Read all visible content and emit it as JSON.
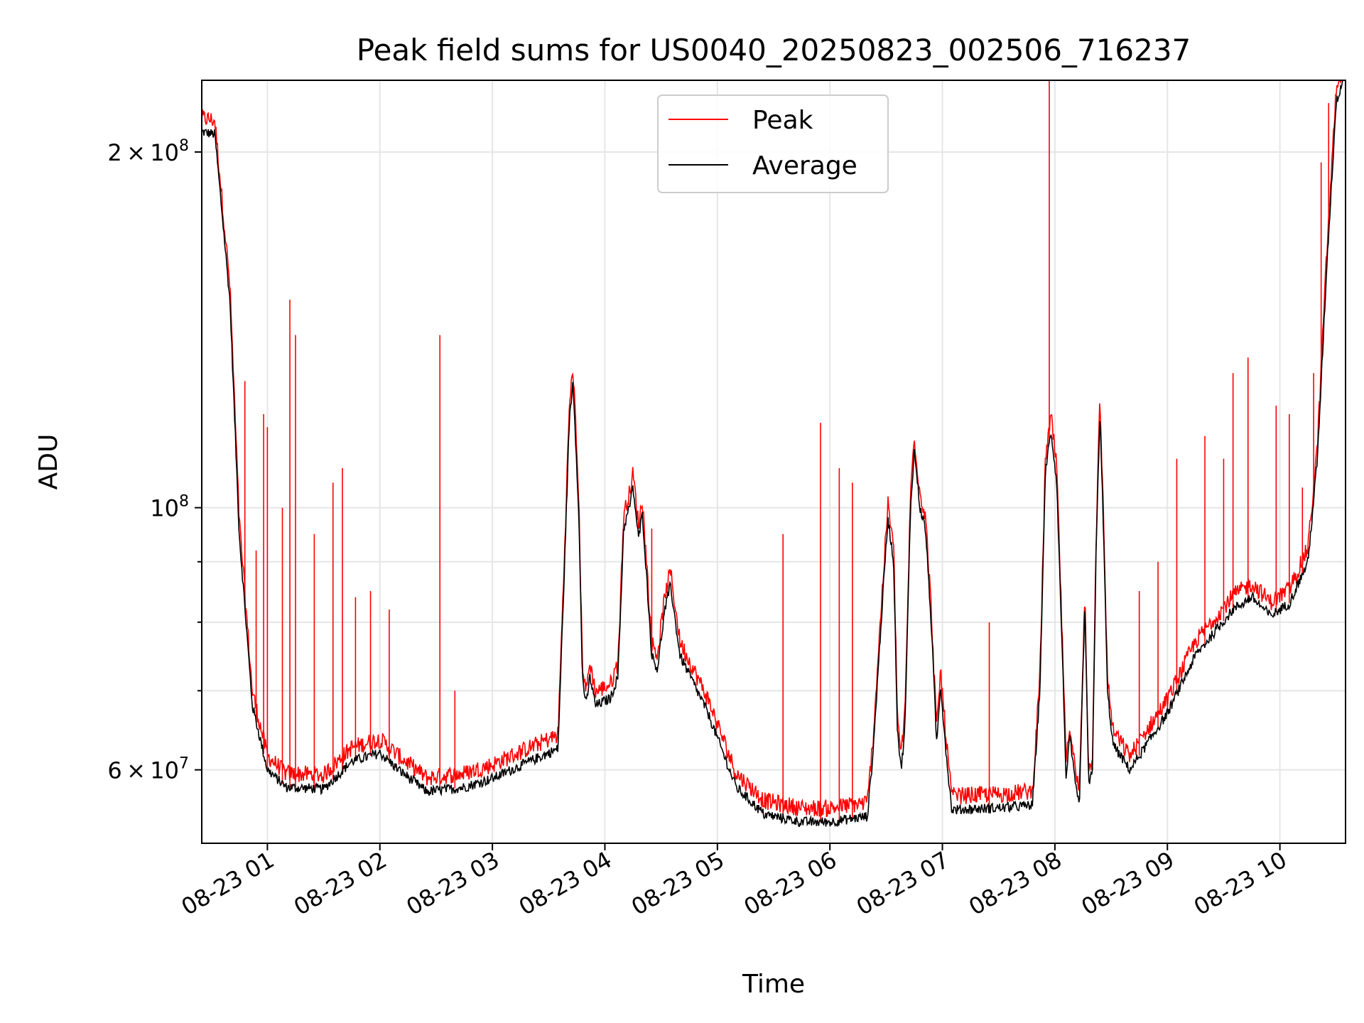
{
  "chart_data": {
    "type": "line",
    "title": "Peak field sums for US0040_20250823_002506_716237",
    "xlabel": "Time",
    "ylabel": "ADU",
    "yscale": "log",
    "ylim": [
      52000000,
      230000000
    ],
    "xlim": [
      "2025-08-23 00:25",
      "2025-08-23 10:35"
    ],
    "grid": true,
    "legend": {
      "position": "top-center",
      "entries": [
        "Peak",
        "Average"
      ]
    },
    "x_ticks": [
      "08-23 01",
      "08-23 02",
      "08-23 03",
      "08-23 04",
      "08-23 05",
      "08-23 06",
      "08-23 07",
      "08-23 08",
      "08-23 09",
      "08-23 10"
    ],
    "y_ticks": [
      {
        "value": 60000000,
        "base": "6 × 10",
        "exp": "7"
      },
      {
        "value": 100000000,
        "base": "10",
        "exp": "8"
      },
      {
        "value": 200000000,
        "base": "2 × 10",
        "exp": "8"
      }
    ],
    "y_minor_ticks": [
      70000000,
      80000000,
      90000000
    ],
    "series": [
      {
        "name": "Average",
        "color": "#000000",
        "points": [
          [
            "2025-08-23 00:25",
            208000000
          ],
          [
            "2025-08-23 00:32",
            207000000
          ],
          [
            "2025-08-23 00:40",
            150000000
          ],
          [
            "2025-08-23 00:45",
            95000000
          ],
          [
            "2025-08-23 00:52",
            68000000
          ],
          [
            "2025-08-23 01:00",
            60000000
          ],
          [
            "2025-08-23 01:10",
            58000000
          ],
          [
            "2025-08-23 01:30",
            57800000
          ],
          [
            "2025-08-23 01:45",
            61000000
          ],
          [
            "2025-08-23 02:00",
            62000000
          ],
          [
            "2025-08-23 02:10",
            60000000
          ],
          [
            "2025-08-23 02:25",
            57500000
          ],
          [
            "2025-08-23 02:45",
            58000000
          ],
          [
            "2025-08-23 03:00",
            59000000
          ],
          [
            "2025-08-23 03:20",
            61000000
          ],
          [
            "2025-08-23 03:35",
            62500000
          ],
          [
            "2025-08-23 03:38",
            85000000
          ],
          [
            "2025-08-23 03:41",
            118000000
          ],
          [
            "2025-08-23 03:43",
            128000000
          ],
          [
            "2025-08-23 03:46",
            100000000
          ],
          [
            "2025-08-23 03:48",
            72000000
          ],
          [
            "2025-08-23 03:50",
            68000000
          ],
          [
            "2025-08-23 03:52",
            72000000
          ],
          [
            "2025-08-23 03:55",
            68000000
          ],
          [
            "2025-08-23 04:03",
            69000000
          ],
          [
            "2025-08-23 04:07",
            72000000
          ],
          [
            "2025-08-23 04:10",
            96000000
          ],
          [
            "2025-08-23 04:13",
            100000000
          ],
          [
            "2025-08-23 04:15",
            104000000
          ],
          [
            "2025-08-23 04:18",
            94000000
          ],
          [
            "2025-08-23 04:20",
            99000000
          ],
          [
            "2025-08-23 04:25",
            75000000
          ],
          [
            "2025-08-23 04:28",
            73000000
          ],
          [
            "2025-08-23 04:32",
            82000000
          ],
          [
            "2025-08-23 04:35",
            86000000
          ],
          [
            "2025-08-23 04:40",
            75000000
          ],
          [
            "2025-08-23 04:55",
            67000000
          ],
          [
            "2025-08-23 05:10",
            58000000
          ],
          [
            "2025-08-23 05:25",
            55000000
          ],
          [
            "2025-08-23 05:45",
            54200000
          ],
          [
            "2025-08-23 06:00",
            54200000
          ],
          [
            "2025-08-23 06:20",
            54800000
          ],
          [
            "2025-08-23 06:23",
            62000000
          ],
          [
            "2025-08-23 06:26",
            74000000
          ],
          [
            "2025-08-23 06:29",
            88000000
          ],
          [
            "2025-08-23 06:31",
            98000000
          ],
          [
            "2025-08-23 06:34",
            90000000
          ],
          [
            "2025-08-23 06:36",
            65000000
          ],
          [
            "2025-08-23 06:38",
            60000000
          ],
          [
            "2025-08-23 06:40",
            65000000
          ],
          [
            "2025-08-23 06:43",
            100000000
          ],
          [
            "2025-08-23 06:45",
            112000000
          ],
          [
            "2025-08-23 06:48",
            100000000
          ],
          [
            "2025-08-23 06:51",
            96000000
          ],
          [
            "2025-08-23 06:54",
            80000000
          ],
          [
            "2025-08-23 06:57",
            63000000
          ],
          [
            "2025-08-23 06:59",
            71000000
          ],
          [
            "2025-08-23 07:02",
            62000000
          ],
          [
            "2025-08-23 07:05",
            55500000
          ],
          [
            "2025-08-23 07:30",
            55700000
          ],
          [
            "2025-08-23 07:48",
            56000000
          ],
          [
            "2025-08-23 07:52",
            70000000
          ],
          [
            "2025-08-23 07:55",
            108000000
          ],
          [
            "2025-08-23 07:58",
            116000000
          ],
          [
            "2025-08-23 08:01",
            105000000
          ],
          [
            "2025-08-23 08:04",
            75000000
          ],
          [
            "2025-08-23 08:06",
            59000000
          ],
          [
            "2025-08-23 08:08",
            64000000
          ],
          [
            "2025-08-23 08:11",
            58000000
          ],
          [
            "2025-08-23 08:13",
            56000000
          ],
          [
            "2025-08-23 08:16",
            83000000
          ],
          [
            "2025-08-23 08:18",
            58000000
          ],
          [
            "2025-08-23 08:20",
            60000000
          ],
          [
            "2025-08-23 08:22",
            92000000
          ],
          [
            "2025-08-23 08:24",
            120000000
          ],
          [
            "2025-08-23 08:26",
            95000000
          ],
          [
            "2025-08-23 08:28",
            70000000
          ],
          [
            "2025-08-23 08:31",
            63000000
          ],
          [
            "2025-08-23 08:40",
            60000000
          ],
          [
            "2025-08-23 09:00",
            67000000
          ],
          [
            "2025-08-23 09:15",
            75000000
          ],
          [
            "2025-08-23 09:35",
            82000000
          ],
          [
            "2025-08-23 09:45",
            84000000
          ],
          [
            "2025-08-23 09:55",
            81000000
          ],
          [
            "2025-08-23 10:05",
            83000000
          ],
          [
            "2025-08-23 10:15",
            90000000
          ],
          [
            "2025-08-23 10:20",
            110000000
          ],
          [
            "2025-08-23 10:25",
            160000000
          ],
          [
            "2025-08-23 10:30",
            220000000
          ],
          [
            "2025-08-23 10:35",
            235000000
          ]
        ]
      },
      {
        "name": "Peak",
        "color": "#ff0000",
        "spikes": [
          [
            "2025-08-23 00:48",
            128000000
          ],
          [
            "2025-08-23 00:54",
            92000000
          ],
          [
            "2025-08-23 00:58",
            120000000
          ],
          [
            "2025-08-23 01:00",
            117000000
          ],
          [
            "2025-08-23 01:08",
            100000000
          ],
          [
            "2025-08-23 01:12",
            150000000
          ],
          [
            "2025-08-23 01:15",
            140000000
          ],
          [
            "2025-08-23 01:25",
            95000000
          ],
          [
            "2025-08-23 01:35",
            105000000
          ],
          [
            "2025-08-23 01:40",
            108000000
          ],
          [
            "2025-08-23 01:47",
            84000000
          ],
          [
            "2025-08-23 01:55",
            85000000
          ],
          [
            "2025-08-23 02:05",
            82000000
          ],
          [
            "2025-08-23 02:32",
            140000000
          ],
          [
            "2025-08-23 02:40",
            70000000
          ],
          [
            "2025-08-23 04:25",
            96000000
          ],
          [
            "2025-08-23 05:35",
            95000000
          ],
          [
            "2025-08-23 05:55",
            118000000
          ],
          [
            "2025-08-23 06:05",
            108000000
          ],
          [
            "2025-08-23 06:12",
            105000000
          ],
          [
            "2025-08-23 07:25",
            80000000
          ],
          [
            "2025-08-23 07:57",
            235000000
          ],
          [
            "2025-08-23 08:45",
            85000000
          ],
          [
            "2025-08-23 08:55",
            90000000
          ],
          [
            "2025-08-23 09:05",
            110000000
          ],
          [
            "2025-08-23 09:20",
            115000000
          ],
          [
            "2025-08-23 09:30",
            110000000
          ],
          [
            "2025-08-23 09:35",
            130000000
          ],
          [
            "2025-08-23 09:43",
            134000000
          ],
          [
            "2025-08-23 09:58",
            122000000
          ],
          [
            "2025-08-23 10:05",
            120000000
          ],
          [
            "2025-08-23 10:12",
            104000000
          ],
          [
            "2025-08-23 10:18",
            130000000
          ],
          [
            "2025-08-23 10:22",
            196000000
          ],
          [
            "2025-08-23 10:26",
            220000000
          ]
        ]
      }
    ]
  }
}
